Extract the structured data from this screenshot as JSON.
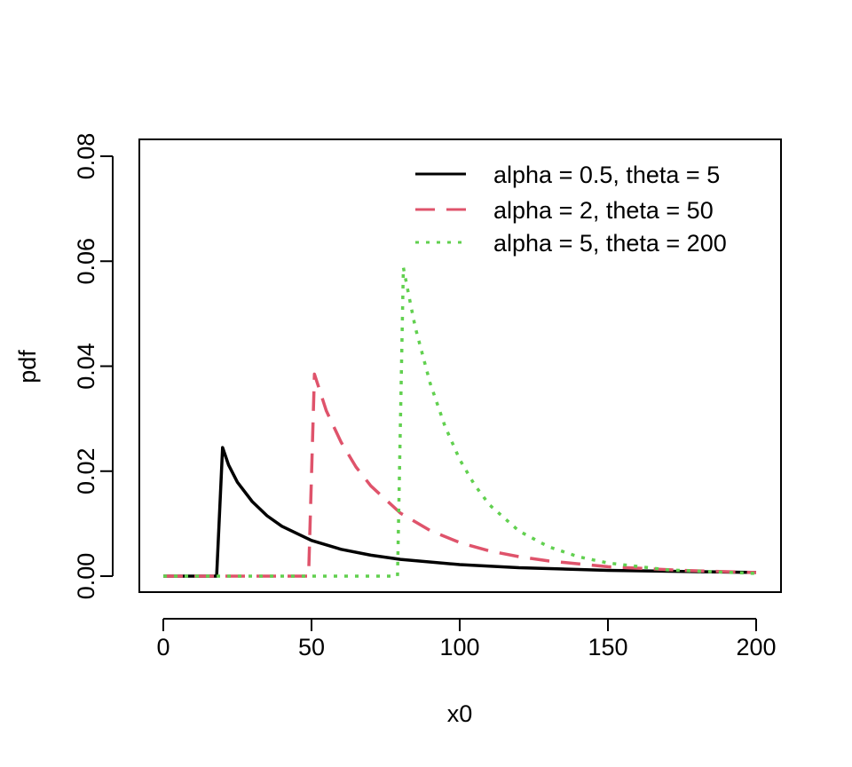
{
  "chart_data": {
    "type": "line",
    "title": "",
    "xlabel": "x0",
    "ylabel": "pdf",
    "xlim": [
      0,
      200
    ],
    "ylim": [
      0,
      0.08
    ],
    "x_ticks": [
      0,
      50,
      100,
      150,
      200
    ],
    "x_tick_labels": [
      "0",
      "50",
      "100",
      "150",
      "200"
    ],
    "y_ticks": [
      0,
      0.02,
      0.04,
      0.06,
      0.08
    ],
    "y_tick_labels": [
      "0.00",
      "0.02",
      "0.04",
      "0.06",
      "0.08"
    ],
    "grid": false,
    "legend_position": "top-right",
    "series": [
      {
        "name": "alpha = 0.5, theta = 5",
        "color": "#000000",
        "style": "solid",
        "x": [
          0,
          18,
          20,
          22,
          25,
          30,
          35,
          40,
          50,
          60,
          70,
          80,
          100,
          120,
          150,
          200
        ],
        "y": [
          0,
          0,
          0.0245,
          0.0212,
          0.0179,
          0.0142,
          0.0115,
          0.0095,
          0.0068,
          0.0051,
          0.004,
          0.0032,
          0.0022,
          0.0016,
          0.0011,
          0.0007
        ]
      },
      {
        "name": "alpha = 2, theta = 50",
        "color": "#DF536B",
        "style": "dashed",
        "x": [
          0,
          49,
          51,
          55,
          60,
          65,
          70,
          80,
          90,
          100,
          110,
          120,
          130,
          150,
          175,
          200
        ],
        "y": [
          0,
          0,
          0.0385,
          0.0315,
          0.0255,
          0.0208,
          0.0172,
          0.012,
          0.0087,
          0.0064,
          0.0048,
          0.0037,
          0.0029,
          0.0018,
          0.0011,
          0.0007
        ]
      },
      {
        "name": "alpha = 5, theta = 200",
        "color": "#61D04F",
        "style": "dotted",
        "x": [
          0,
          79,
          81,
          83,
          85,
          90,
          95,
          100,
          105,
          110,
          120,
          130,
          140,
          150,
          170,
          200
        ],
        "y": [
          0,
          0,
          0.0588,
          0.053,
          0.0474,
          0.0368,
          0.0286,
          0.0222,
          0.0174,
          0.0136,
          0.0086,
          0.0056,
          0.0037,
          0.0025,
          0.0012,
          0.0005
        ]
      }
    ]
  }
}
